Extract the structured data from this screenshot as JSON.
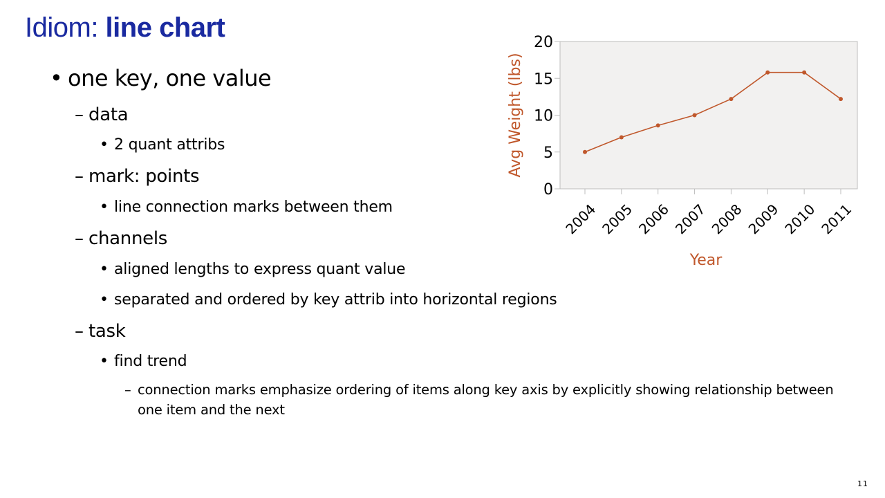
{
  "slide": {
    "title_prefix": "Idiom: ",
    "title_bold": "line chart",
    "page_number": "11"
  },
  "bullets": {
    "b1": {
      "marker": "•",
      "text": "one key, one value"
    },
    "data": {
      "marker": "–",
      "text": "data"
    },
    "data_1": {
      "marker": "•",
      "text": "2 quant attribs"
    },
    "mark": {
      "marker": "–",
      "text": "mark: points"
    },
    "mark_1": {
      "marker": "•",
      "text": "line connection marks between them"
    },
    "channels": {
      "marker": "–",
      "text": "channels"
    },
    "channels_1": {
      "marker": "•",
      "text": "aligned lengths to express quant value"
    },
    "channels_2": {
      "marker": "•",
      "text": "separated and ordered by key attrib into horizontal regions"
    },
    "task": {
      "marker": "–",
      "text": "task"
    },
    "task_1": {
      "marker": "•",
      "text": "find trend"
    },
    "task_1_1": {
      "marker": "–",
      "text": "connection marks emphasize ordering of items along key axis by explicitly showing relationship between one item and the next"
    }
  },
  "chart_data": {
    "type": "line",
    "title": "",
    "xlabel": "Year",
    "ylabel": "Avg Weight (lbs)",
    "categories": [
      "2004",
      "2005",
      "2006",
      "2007",
      "2008",
      "2009",
      "2010",
      "2011"
    ],
    "values": [
      5,
      7,
      8.6,
      10,
      12.2,
      15.8,
      15.8,
      12.2
    ],
    "ylim": [
      0,
      20
    ],
    "yticks": [
      "0",
      "5",
      "10",
      "15",
      "20"
    ],
    "grid": false,
    "colors": {
      "line": "#c0582c",
      "label": "#c0582c",
      "plot_bg": "#f2f1f0",
      "axis": "#bdbdbd"
    }
  }
}
